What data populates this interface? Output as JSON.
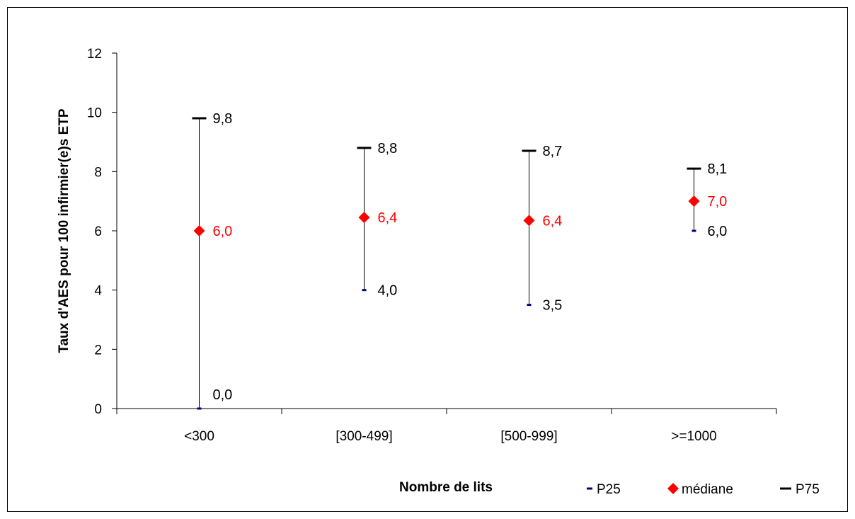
{
  "chart_data": {
    "type": "scatter",
    "xlabel": "Nombre de lits",
    "ylabel": "Taux d'AES pour 100 infirmier(e)s ETP",
    "ylim": [
      0,
      12
    ],
    "yticks": [
      0,
      2,
      4,
      6,
      8,
      10,
      12
    ],
    "categories": [
      "<300",
      "[300-499]",
      "[500-999]",
      ">=1000"
    ],
    "series": [
      {
        "name": "P25",
        "values": [
          0.0,
          4.0,
          3.5,
          6.0
        ],
        "labels": [
          "0,0",
          "4,0",
          "3,5",
          "6,0"
        ],
        "color": "#000080"
      },
      {
        "name": "médiane",
        "values": [
          6.0,
          6.4,
          6.4,
          7.0
        ],
        "labels": [
          "6,0",
          "6,4",
          "6,4",
          "7,0"
        ],
        "color": "#ff0000"
      },
      {
        "name": "P75",
        "values": [
          9.8,
          8.8,
          8.7,
          8.1
        ],
        "labels": [
          "9,8",
          "8,8",
          "8,7",
          "8,1"
        ],
        "color": "#000000"
      }
    ],
    "median_values_plotted": [
      6.0,
      6.45,
      6.35,
      7.0
    ],
    "legend_position": "bottom-right",
    "grid": false
  }
}
